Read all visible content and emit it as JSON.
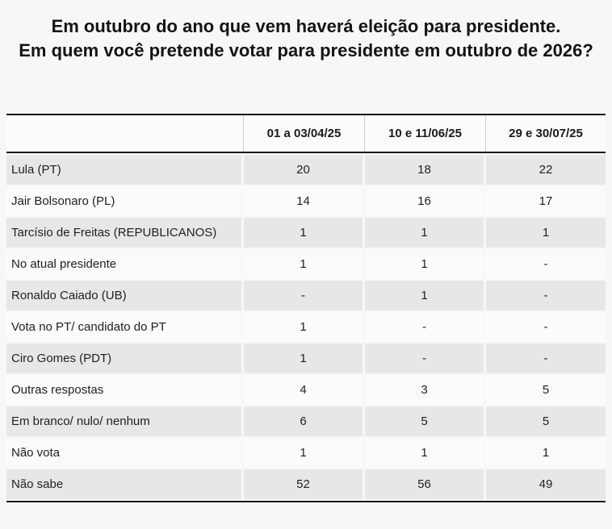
{
  "title": {
    "line1": "Em outubro do ano que vem haverá eleição para presidente.",
    "line2": "Em quem você pretende votar para presidente em outubro de 2026?"
  },
  "table": {
    "columns": [
      "",
      "01 a 03/04/25",
      "10 e 11/06/25",
      "29 e 30/07/25"
    ],
    "rows": [
      {
        "label": "Lula (PT)",
        "values": [
          "20",
          "18",
          "22"
        ]
      },
      {
        "label": "Jair Bolsonaro (PL)",
        "values": [
          "14",
          "16",
          "17"
        ]
      },
      {
        "label": "Tarcísio de Freitas (REPUBLICANOS)",
        "values": [
          "1",
          "1",
          "1"
        ]
      },
      {
        "label": "No atual presidente",
        "values": [
          "1",
          "1",
          "-"
        ]
      },
      {
        "label": "Ronaldo Caiado (UB)",
        "values": [
          "-",
          "1",
          "-"
        ]
      },
      {
        "label": "Vota no PT/ candidato do PT",
        "values": [
          "1",
          "-",
          "-"
        ]
      },
      {
        "label": "Ciro Gomes (PDT)",
        "values": [
          "1",
          "-",
          "-"
        ]
      },
      {
        "label": "Outras respostas",
        "values": [
          "4",
          "3",
          "5"
        ]
      },
      {
        "label": "Em branco/ nulo/ nenhum",
        "values": [
          "6",
          "5",
          "5"
        ]
      },
      {
        "label": "Não vota",
        "values": [
          "1",
          "1",
          "1"
        ]
      },
      {
        "label": "Não sabe",
        "values": [
          "52",
          "56",
          "49"
        ]
      }
    ]
  },
  "colors": {
    "page_background": "#f7f7f7",
    "shaded_row": "#e7e7e7",
    "plain_row": "#fbfbfb",
    "rule": "#151515"
  },
  "chart_data": {
    "type": "table",
    "title": "Em outubro do ano que vem haverá eleição para presidente. Em quem você pretende votar para presidente em outubro de 2026?",
    "categories": [
      "01 a 03/04/25",
      "10 e 11/06/25",
      "29 e 30/07/25"
    ],
    "series": [
      {
        "name": "Lula (PT)",
        "values": [
          20,
          18,
          22
        ]
      },
      {
        "name": "Jair Bolsonaro (PL)",
        "values": [
          14,
          16,
          17
        ]
      },
      {
        "name": "Tarcísio de Freitas (REPUBLICANOS)",
        "values": [
          1,
          1,
          1
        ]
      },
      {
        "name": "No atual presidente",
        "values": [
          1,
          1,
          null
        ]
      },
      {
        "name": "Ronaldo Caiado (UB)",
        "values": [
          null,
          1,
          null
        ]
      },
      {
        "name": "Vota no PT/ candidato do PT",
        "values": [
          1,
          null,
          null
        ]
      },
      {
        "name": "Ciro Gomes (PDT)",
        "values": [
          1,
          null,
          null
        ]
      },
      {
        "name": "Outras respostas",
        "values": [
          4,
          3,
          5
        ]
      },
      {
        "name": "Em branco/ nulo/ nenhum",
        "values": [
          6,
          5,
          5
        ]
      },
      {
        "name": "Não vota",
        "values": [
          1,
          1,
          1
        ]
      },
      {
        "name": "Não sabe",
        "values": [
          52,
          56,
          49
        ]
      }
    ],
    "missing_value_marker": "-",
    "layout": {
      "grid": false,
      "legend_position": "none",
      "values_unit": "percent"
    }
  }
}
